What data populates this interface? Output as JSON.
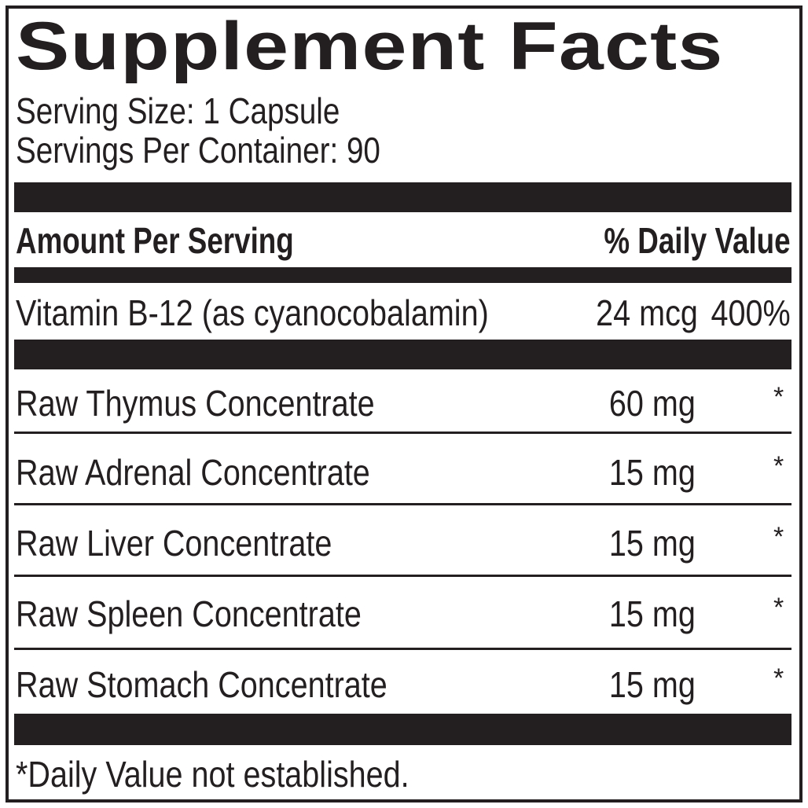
{
  "title": "Supplement Facts",
  "serving_size": "Serving Size: 1 Capsule",
  "servings_per_container": "Servings Per Container: 90",
  "header": {
    "amount": "Amount Per Serving",
    "daily_value": "% Daily Value"
  },
  "vitamin": {
    "name": "Vitamin B-12 (as cyanocobalamin)",
    "amount": "24 mcg",
    "dv": "400%"
  },
  "ingredients": [
    {
      "name": "Raw Thymus Concentrate",
      "amount": "60 mg",
      "dv": "*"
    },
    {
      "name": "Raw Adrenal Concentrate",
      "amount": "15 mg",
      "dv": "*"
    },
    {
      "name": "Raw Liver Concentrate",
      "amount": "15 mg",
      "dv": "*"
    },
    {
      "name": "Raw Spleen Concentrate",
      "amount": "15 mg",
      "dv": "*"
    },
    {
      "name": "Raw Stomach Concentrate",
      "amount": "15 mg",
      "dv": "*"
    }
  ],
  "footnote": "*Daily Value not established.",
  "colors": {
    "ink": "#231f20",
    "background": "#ffffff"
  }
}
